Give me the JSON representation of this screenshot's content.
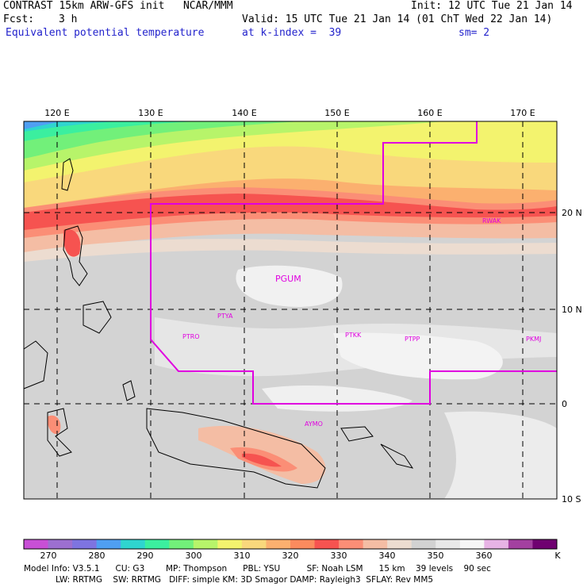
{
  "header": {
    "title": "CONTRAST 15km ARW-GFS init   NCAR/MMM",
    "init": "Init: 12 UTC Tue 21 Jan 14",
    "fcst_label": "Fcst:",
    "fcst_value": "3 h",
    "valid": "Valid: 15 UTC Tue 21 Jan 14 (01 ChT Wed 22 Jan 14)",
    "field": "Equivalent potential temperature",
    "level": "at k-index =  39",
    "smoothing": "sm= 2"
  },
  "map": {
    "lon_labels": [
      "120 E",
      "130 E",
      "140 E",
      "150 E",
      "160 E",
      "170 E"
    ],
    "lat_labels": [
      "20 N",
      "10 N",
      "0",
      "10 S"
    ],
    "stations": [
      "RWAK",
      "PGUM",
      "PTYA",
      "PTRO",
      "PTKK",
      "PTPP",
      "PKMJ",
      "AYMO"
    ]
  },
  "colorbar": {
    "colors": [
      "#c84fd6",
      "#9c6fd0",
      "#7e74e0",
      "#4f9ff2",
      "#2fd5cf",
      "#3bef9f",
      "#72f07a",
      "#b7f46a",
      "#f3f36e",
      "#f9d87c",
      "#fbb06f",
      "#fb8b5e",
      "#f65350",
      "#fb8e76",
      "#f4bda4",
      "#ecdcd0",
      "#d2d2d2",
      "#e8e8e8",
      "#f6f6f6",
      "#e7b3e5",
      "#a340a0",
      "#6f0070"
    ],
    "labels": [
      "270",
      "280",
      "290",
      "300",
      "310",
      "320",
      "330",
      "340",
      "350",
      "360",
      "K"
    ]
  },
  "footer": {
    "line1": "Model Info: V3.5.1      CU: G3        MP: Thompson      PBL: YSU          SF: Noah LSM      15 km    39 levels    90 sec",
    "line2": "LW: RRTMG    SW: RRTMG   DIFF: simple KM: 3D Smagor DAMP: Rayleigh3  SFLAY: Rev MM5"
  }
}
